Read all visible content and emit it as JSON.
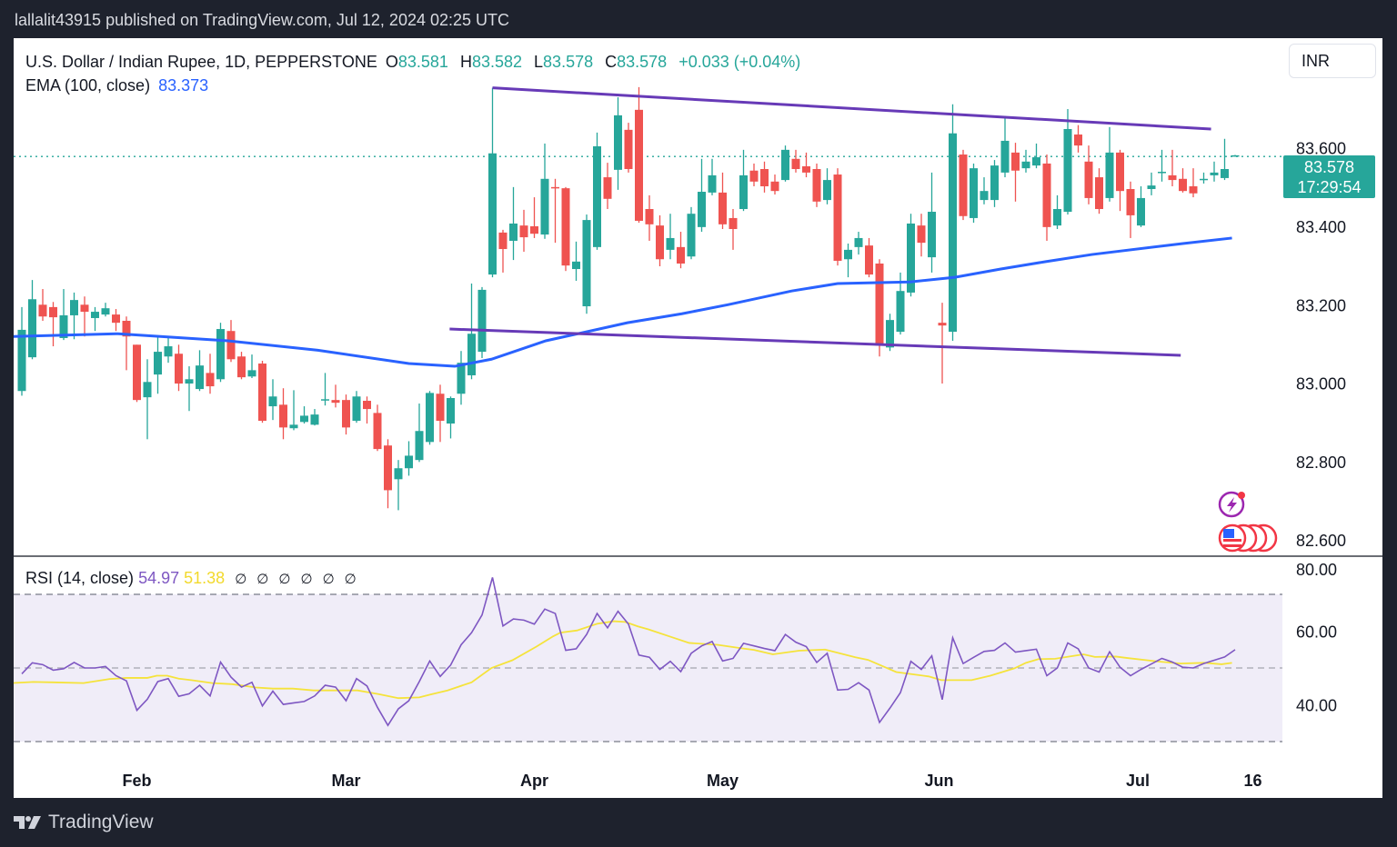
{
  "published": "lallalit43915 published on TradingView.com, Jul 12, 2024 02:25 UTC",
  "legend": {
    "symbol": "U.S. Dollar / Indian Rupee, 1D, PEPPERSTONE",
    "o_label": "O",
    "o": "83.581",
    "h_label": "H",
    "h": "83.582",
    "l_label": "L",
    "l": "83.578",
    "c_label": "C",
    "c": "83.578",
    "change": "+0.033 (+0.04%)",
    "ema_label": "EMA (100, close)",
    "ema_value": "83.373"
  },
  "rsi_legend": {
    "label": "RSI (14, close)",
    "rsi": "54.97",
    "ma": "51.38",
    "na_marks": [
      "∅",
      "∅",
      "∅",
      "∅",
      "∅",
      "∅"
    ]
  },
  "currency": "INR",
  "price_tag": {
    "price": "83.578",
    "countdown": "17:29:54"
  },
  "brand": "TradingView",
  "colors": {
    "up": "#26a69a",
    "down": "#ef5350",
    "ema": "#2962ff",
    "trendline": "#673ab7",
    "rsi": "#7e57c2",
    "rsi_ma": "#f5e33b",
    "rsi_band": "#f0edf8"
  },
  "chart_data": {
    "type": "candlestick",
    "title": "U.S. Dollar / Indian Rupee, 1D, PEPPERSTONE",
    "ylim": [
      82.55,
      83.8
    ],
    "y_ticks": [
      "83.600",
      "83.400",
      "83.200",
      "83.000",
      "82.800",
      "82.600"
    ],
    "last_price": 83.578,
    "x_ticks": [
      {
        "label": "Feb",
        "index": 11
      },
      {
        "label": "Mar",
        "index": 31
      },
      {
        "label": "Apr",
        "index": 49
      },
      {
        "label": "May",
        "index": 67
      },
      {
        "label": "Jun",
        "index": 87.7
      },
      {
        "label": "Jul",
        "index": 106.7
      },
      {
        "label": "16",
        "index": 117.7
      }
    ],
    "ohlc_fields": [
      "open",
      "high",
      "low",
      "close"
    ],
    "candles": [
      [
        82.98,
        83.194,
        82.968,
        83.136
      ],
      [
        83.066,
        83.263,
        83.061,
        83.214
      ],
      [
        83.2,
        83.24,
        83.159,
        83.17
      ],
      [
        83.194,
        83.207,
        83.094,
        83.168
      ],
      [
        83.115,
        83.24,
        83.11,
        83.173
      ],
      [
        83.173,
        83.231,
        83.112,
        83.212
      ],
      [
        83.2,
        83.221,
        83.119,
        83.182
      ],
      [
        83.166,
        83.194,
        83.133,
        83.182
      ],
      [
        83.175,
        83.205,
        83.17,
        83.191
      ],
      [
        83.175,
        83.189,
        83.133,
        83.154
      ],
      [
        83.159,
        83.17,
        83.033,
        83.119
      ],
      [
        83.098,
        83.098,
        82.952,
        82.957
      ],
      [
        82.964,
        83.061,
        82.857,
        83.003
      ],
      [
        83.022,
        83.119,
        82.973,
        83.08
      ],
      [
        83.068,
        83.119,
        83.052,
        83.094
      ],
      [
        83.075,
        83.098,
        82.98,
        82.999
      ],
      [
        82.999,
        83.043,
        82.929,
        83.01
      ],
      [
        82.985,
        83.084,
        82.98,
        83.045
      ],
      [
        83.026,
        83.075,
        82.973,
        82.992
      ],
      [
        83.01,
        83.154,
        83.003,
        83.138
      ],
      [
        83.133,
        83.161,
        83.054,
        83.061
      ],
      [
        83.068,
        83.08,
        83.01,
        83.015
      ],
      [
        83.017,
        83.073,
        83.013,
        83.033
      ],
      [
        83.05,
        83.057,
        82.899,
        82.904
      ],
      [
        82.941,
        83.01,
        82.906,
        82.966
      ],
      [
        82.945,
        82.987,
        82.857,
        82.887
      ],
      [
        82.885,
        82.982,
        82.88,
        82.894
      ],
      [
        82.901,
        82.941,
        82.897,
        82.917
      ],
      [
        82.894,
        82.934,
        82.892,
        82.92
      ],
      [
        82.957,
        83.026,
        82.943,
        82.959
      ],
      [
        82.957,
        82.996,
        82.938,
        82.95
      ],
      [
        82.957,
        82.971,
        82.869,
        82.887
      ],
      [
        82.904,
        82.98,
        82.899,
        82.966
      ],
      [
        82.955,
        82.966,
        82.897,
        82.934
      ],
      [
        82.924,
        82.945,
        82.827,
        82.832
      ],
      [
        82.841,
        82.857,
        82.681,
        82.727
      ],
      [
        82.755,
        82.804,
        82.676,
        82.783
      ],
      [
        82.783,
        82.852,
        82.764,
        82.815
      ],
      [
        82.804,
        82.948,
        82.799,
        82.878
      ],
      [
        82.85,
        82.98,
        82.843,
        82.975
      ],
      [
        82.973,
        82.996,
        82.85,
        82.904
      ],
      [
        82.897,
        82.966,
        82.859,
        82.962
      ],
      [
        82.973,
        83.082,
        82.945,
        83.052
      ],
      [
        83.02,
        83.254,
        83.01,
        83.126
      ],
      [
        83.08,
        83.245,
        83.064,
        83.238
      ],
      [
        83.277,
        83.753,
        83.27,
        83.586
      ],
      [
        83.384,
        83.391,
        83.282,
        83.342
      ],
      [
        83.363,
        83.5,
        83.314,
        83.407
      ],
      [
        83.402,
        83.442,
        83.335,
        83.372
      ],
      [
        83.4,
        83.474,
        83.37,
        83.381
      ],
      [
        83.379,
        83.611,
        83.368,
        83.521
      ],
      [
        83.5,
        83.521,
        83.358,
        83.497
      ],
      [
        83.497,
        83.5,
        83.286,
        83.3
      ],
      [
        83.291,
        83.361,
        83.261,
        83.31
      ],
      [
        83.196,
        83.43,
        83.177,
        83.416
      ],
      [
        83.347,
        83.639,
        83.34,
        83.604
      ],
      [
        83.525,
        83.562,
        83.444,
        83.47
      ],
      [
        83.544,
        83.729,
        83.493,
        83.683
      ],
      [
        83.646,
        83.664,
        83.537,
        83.546
      ],
      [
        83.697,
        83.755,
        83.409,
        83.414
      ],
      [
        83.444,
        83.479,
        83.363,
        83.405
      ],
      [
        83.402,
        83.428,
        83.298,
        83.316
      ],
      [
        83.34,
        83.432,
        83.316,
        83.37
      ],
      [
        83.347,
        83.386,
        83.293,
        83.305
      ],
      [
        83.323,
        83.449,
        83.316,
        83.432
      ],
      [
        83.398,
        83.572,
        83.386,
        83.488
      ],
      [
        83.486,
        83.572,
        83.479,
        83.53
      ],
      [
        83.486,
        83.537,
        83.393,
        83.405
      ],
      [
        83.421,
        83.444,
        83.34,
        83.393
      ],
      [
        83.444,
        83.595,
        83.439,
        83.53
      ],
      [
        83.542,
        83.56,
        83.502,
        83.514
      ],
      [
        83.546,
        83.565,
        83.486,
        83.502
      ],
      [
        83.514,
        83.532,
        83.481,
        83.49
      ],
      [
        83.518,
        83.606,
        83.514,
        83.595
      ],
      [
        83.572,
        83.595,
        83.537,
        83.546
      ],
      [
        83.553,
        83.588,
        83.525,
        83.537
      ],
      [
        83.546,
        83.56,
        83.449,
        83.463
      ],
      [
        83.467,
        83.548,
        83.456,
        83.518
      ],
      [
        83.532,
        83.548,
        83.3,
        83.312
      ],
      [
        83.316,
        83.356,
        83.27,
        83.34
      ],
      [
        83.347,
        83.386,
        83.328,
        83.37
      ],
      [
        83.351,
        83.37,
        83.27,
        83.277
      ],
      [
        83.305,
        83.316,
        83.068,
        83.096
      ],
      [
        83.091,
        83.177,
        83.082,
        83.161
      ],
      [
        83.131,
        83.282,
        83.124,
        83.235
      ],
      [
        83.231,
        83.432,
        83.221,
        83.407
      ],
      [
        83.402,
        83.432,
        83.323,
        83.358
      ],
      [
        83.321,
        83.537,
        83.282,
        83.437
      ],
      [
        83.154,
        83.205,
        82.999,
        83.147
      ],
      [
        83.131,
        83.711,
        83.108,
        83.637
      ],
      [
        83.583,
        83.595,
        83.416,
        83.426
      ],
      [
        83.421,
        83.56,
        83.409,
        83.548
      ],
      [
        83.467,
        83.525,
        83.456,
        83.49
      ],
      [
        83.467,
        83.569,
        83.449,
        83.555
      ],
      [
        83.537,
        83.681,
        83.525,
        83.618
      ],
      [
        83.588,
        83.613,
        83.463,
        83.542
      ],
      [
        83.548,
        83.595,
        83.537,
        83.565
      ],
      [
        83.555,
        83.611,
        83.548,
        83.576
      ],
      [
        83.56,
        83.583,
        83.363,
        83.398
      ],
      [
        83.402,
        83.479,
        83.393,
        83.444
      ],
      [
        83.437,
        83.699,
        83.43,
        83.648
      ],
      [
        83.634,
        83.658,
        83.588,
        83.606
      ],
      [
        83.565,
        83.606,
        83.456,
        83.472
      ],
      [
        83.525,
        83.548,
        83.432,
        83.444
      ],
      [
        83.472,
        83.653,
        83.463,
        83.588
      ],
      [
        83.588,
        83.595,
        83.439,
        83.49
      ],
      [
        83.495,
        83.514,
        83.37,
        83.428
      ],
      [
        83.402,
        83.502,
        83.398,
        83.472
      ],
      [
        83.495,
        83.537,
        83.479,
        83.504
      ],
      [
        83.537,
        83.595,
        83.514,
        83.539
      ],
      [
        83.53,
        83.595,
        83.502,
        83.518
      ],
      [
        83.521,
        83.548,
        83.486,
        83.49
      ],
      [
        83.502,
        83.548,
        83.474,
        83.484
      ],
      [
        83.518,
        83.537,
        83.509,
        83.521
      ],
      [
        83.53,
        83.565,
        83.514,
        83.537
      ],
      [
        83.523,
        83.623,
        83.518,
        83.546
      ],
      [
        83.581,
        83.582,
        83.578,
        83.578
      ]
    ],
    "ema_100": [
      [
        -0.8,
        83.119
      ],
      [
        9.2,
        83.126
      ],
      [
        19.7,
        83.108
      ],
      [
        28.3,
        83.084
      ],
      [
        37,
        83.05
      ],
      [
        41.4,
        83.043
      ],
      [
        44.9,
        83.061
      ],
      [
        50.1,
        83.108
      ],
      [
        57.9,
        83.154
      ],
      [
        63.1,
        83.177
      ],
      [
        67.5,
        83.2
      ],
      [
        73.6,
        83.235
      ],
      [
        78,
        83.254
      ],
      [
        81.4,
        83.256
      ],
      [
        84.9,
        83.258
      ],
      [
        89.2,
        83.27
      ],
      [
        93.6,
        83.291
      ],
      [
        97.9,
        83.31
      ],
      [
        102.3,
        83.328
      ],
      [
        111,
        83.356
      ],
      [
        115.7,
        83.37
      ]
    ],
    "trendlines": [
      {
        "name": "upper",
        "points": [
          [
            45,
            83.753
          ],
          [
            113.7,
            83.648
          ]
        ]
      },
      {
        "name": "lower",
        "points": [
          [
            40.9,
            83.138
          ],
          [
            110.8,
            83.071
          ]
        ]
      }
    ],
    "rsi": {
      "ylim": [
        25,
        82
      ],
      "y_ticks": [
        "80.00",
        "60.00",
        "40.00"
      ],
      "levels": [
        70,
        50,
        30
      ],
      "values": [
        48.4,
        51.4,
        50.9,
        49.4,
        49.8,
        51.5,
        50.0,
        50.0,
        50.4,
        47.9,
        46.5,
        38.5,
        41.5,
        46.3,
        47.1,
        42.3,
        43.0,
        45.3,
        42.4,
        51.6,
        47.5,
        44.8,
        46.1,
        39.7,
        43.7,
        40.1,
        40.5,
        40.9,
        42.4,
        45.3,
        44.8,
        41.1,
        47.1,
        45.1,
        39.3,
        34.4,
        38.9,
        41.1,
        46.3,
        51.9,
        47.7,
        50.8,
        56.3,
        59.6,
        64.4,
        74.6,
        61.4,
        63.3,
        63.0,
        61.9,
        66.0,
        64.8,
        54.8,
        55.2,
        59.1,
        64.8,
        60.9,
        65.4,
        61.9,
        53.5,
        52.9,
        49.6,
        51.8,
        49.0,
        54.0,
        56.0,
        57.2,
        51.9,
        52.6,
        56.7,
        56.0,
        55.3,
        54.7,
        59.1,
        57.0,
        55.8,
        51.5,
        54.0,
        44.0,
        44.2,
        46.0,
        44.0,
        35.2,
        39.1,
        43.3,
        51.8,
        49.6,
        53.3,
        41.4,
        58.2,
        51.2,
        52.9,
        54.5,
        54.8,
        56.8,
        54.3,
        54.7,
        55.1,
        47.9,
        50.0,
        56.8,
        55.2,
        50.0,
        48.9,
        54.4,
        50.2,
        47.9,
        49.6,
        51.1,
        52.6,
        51.6,
        50.2,
        50.0,
        51.2,
        52.1,
        53.0,
        54.97
      ],
      "ma": [
        [
          -0.9,
          45.9
        ],
        [
          1.1,
          46.2
        ],
        [
          3,
          46.1
        ],
        [
          5.9,
          45.9
        ],
        [
          8.4,
          47.0
        ],
        [
          10,
          47.3
        ],
        [
          12,
          47.3
        ],
        [
          12.9,
          47.9
        ],
        [
          13.9,
          47.9
        ],
        [
          15,
          47.1
        ],
        [
          16.2,
          46.7
        ],
        [
          18.2,
          45.9
        ],
        [
          20.1,
          45.6
        ],
        [
          22.4,
          44.7
        ],
        [
          24,
          44.4
        ],
        [
          25.9,
          44.4
        ],
        [
          27.9,
          43.9
        ],
        [
          32.1,
          43.9
        ],
        [
          34.1,
          42.9
        ],
        [
          36,
          41.8
        ],
        [
          38,
          42.0
        ],
        [
          39.1,
          42.8
        ],
        [
          40.7,
          43.9
        ],
        [
          43,
          46.1
        ],
        [
          44.9,
          50.0
        ],
        [
          46.9,
          52.1
        ],
        [
          49.2,
          55.8
        ],
        [
          50.8,
          58.6
        ],
        [
          51.5,
          59.6
        ],
        [
          53.1,
          60.2
        ],
        [
          55,
          62.0
        ],
        [
          56.6,
          62.7
        ],
        [
          57.7,
          62.5
        ],
        [
          58.9,
          61.3
        ],
        [
          59.9,
          60.5
        ],
        [
          61.9,
          58.6
        ],
        [
          63.8,
          56.8
        ],
        [
          66.5,
          56.3
        ],
        [
          68.9,
          55.3
        ],
        [
          70,
          54.9
        ],
        [
          71.8,
          53.7
        ],
        [
          74.3,
          54.7
        ],
        [
          76.8,
          55.0
        ],
        [
          79.7,
          52.9
        ],
        [
          80.9,
          52.2
        ],
        [
          83.6,
          48.9
        ],
        [
          86.7,
          47.7
        ],
        [
          87.9,
          46.7
        ],
        [
          90.8,
          46.7
        ],
        [
          92.6,
          47.9
        ],
        [
          94.9,
          49.9
        ],
        [
          96,
          51.4
        ],
        [
          97.2,
          52.4
        ],
        [
          98.8,
          52.5
        ],
        [
          99.9,
          53.0
        ],
        [
          101.5,
          53.7
        ],
        [
          102.6,
          53.0
        ],
        [
          104.6,
          53.1
        ],
        [
          105.7,
          52.7
        ],
        [
          108.5,
          51.8
        ],
        [
          110.8,
          51.2
        ],
        [
          113.1,
          51.4
        ],
        [
          114.7,
          51.0
        ],
        [
          115.7,
          51.38
        ]
      ]
    }
  }
}
